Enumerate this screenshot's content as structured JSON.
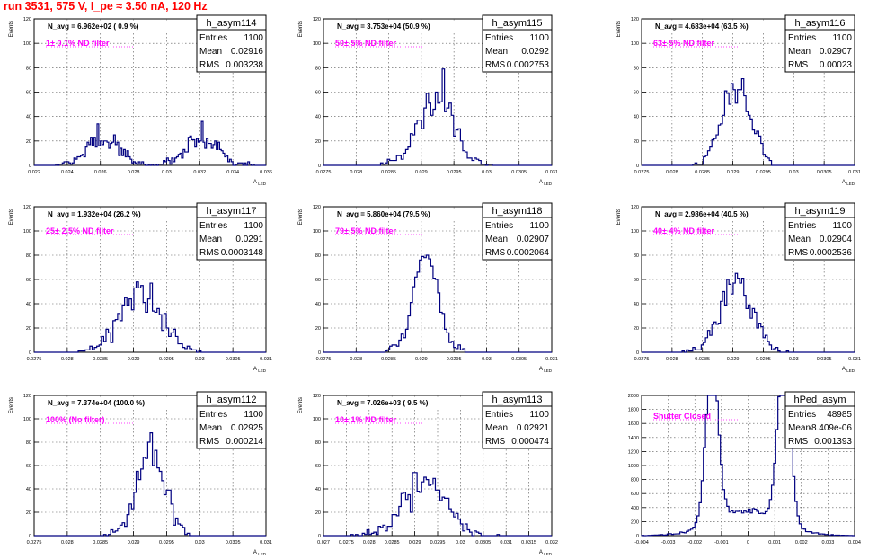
{
  "page_title": "run 3531,   575 V, I_pe ≈ 3.50 nA, 120 Hz",
  "colors": {
    "histogram": "#000080",
    "title": "#ff0000",
    "annotation": "#ff00ff"
  },
  "chart_data": [
    {
      "type": "histogram",
      "name": "h_asym114",
      "navg": "N_avg = 6.962e+02 ( 0.9 %)",
      "filter": "1± 0.1% ND filter",
      "stats": {
        "Entries": "1100",
        "Mean": "0.02916",
        "RMS": "0.003238"
      },
      "ylabel": "Events",
      "xlabel": "A_LED",
      "xlim": [
        0.022,
        0.036
      ],
      "ylim": [
        0,
        120
      ],
      "xticks": [
        "0.022",
        "0.024",
        "0.026",
        "0.028",
        "0.03",
        "0.032",
        "0.034",
        "0.036"
      ],
      "yticks": [
        "0",
        "20",
        "40",
        "60",
        "80",
        "100",
        "120"
      ],
      "dist": [
        {
          "mu": 0.0262,
          "sigma": 0.001,
          "n": 545
        },
        {
          "mu": 0.03215,
          "sigma": 0.001,
          "n": 555
        }
      ],
      "bins": 140,
      "seed": 11
    },
    {
      "type": "histogram",
      "name": "h_asym115",
      "navg": "N_avg = 3.753e+04 (50.9 %)",
      "filter": "50± 5% ND filter",
      "stats": {
        "Entries": "1100",
        "Mean": "0.0292",
        "RMS": "0.0002753"
      },
      "ylabel": "Events",
      "xlabel": "A_LED",
      "xlim": [
        0.0275,
        0.031
      ],
      "ylim": [
        0,
        120
      ],
      "xticks": [
        "0.0275",
        "0.028",
        "0.0285",
        "0.029",
        "0.0295",
        "0.03",
        "0.0305",
        "0.031"
      ],
      "yticks": [
        "0",
        "20",
        "40",
        "60",
        "80",
        "100",
        "120"
      ],
      "dist": [
        {
          "mu": 0.0292,
          "sigma": 0.000275,
          "n": 1100
        }
      ],
      "bins": 100,
      "seed": 23
    },
    {
      "type": "histogram",
      "name": "h_asym116",
      "navg": "N_avg = 4.683e+04 (63.5 %)",
      "filter": "63± 5% ND filter",
      "stats": {
        "Entries": "1100",
        "Mean": "0.02907",
        "RMS": "0.00023"
      },
      "ylabel": "Events",
      "xlabel": "A_LED",
      "xlim": [
        0.0275,
        0.031
      ],
      "ylim": [
        0,
        120
      ],
      "xticks": [
        "0.0275",
        "0.028",
        "0.0285",
        "0.029",
        "0.0295",
        "0.03",
        "0.0305",
        "0.031"
      ],
      "yticks": [
        "0",
        "20",
        "40",
        "60",
        "80",
        "100",
        "120"
      ],
      "dist": [
        {
          "mu": 0.02907,
          "sigma": 0.00023,
          "n": 1100
        }
      ],
      "bins": 100,
      "seed": 37
    },
    {
      "type": "histogram",
      "name": "h_asym117",
      "navg": "N_avg = 1.932e+04 (26.2 %)",
      "filter": "25± 2.5% ND filter",
      "stats": {
        "Entries": "1100",
        "Mean": "0.0291",
        "RMS": "0.0003148"
      },
      "ylabel": "Events",
      "xlabel": "A_LED",
      "xlim": [
        0.0275,
        0.031
      ],
      "ylim": [
        0,
        120
      ],
      "xticks": [
        "0.0275",
        "0.028",
        "0.0285",
        "0.029",
        "0.0295",
        "0.03",
        "0.0305",
        "0.031"
      ],
      "yticks": [
        "0",
        "20",
        "40",
        "60",
        "80",
        "100",
        "120"
      ],
      "dist": [
        {
          "mu": 0.0291,
          "sigma": 0.000315,
          "n": 1100
        }
      ],
      "bins": 100,
      "seed": 41
    },
    {
      "type": "histogram",
      "name": "h_asym118",
      "navg": "N_avg = 5.860e+04 (79.5 %)",
      "filter": "79± 5% ND filter",
      "stats": {
        "Entries": "1100",
        "Mean": "0.02907",
        "RMS": "0.0002064"
      },
      "ylabel": "Events",
      "xlabel": "A_LED",
      "xlim": [
        0.0275,
        0.031
      ],
      "ylim": [
        0,
        120
      ],
      "xticks": [
        "0.0275",
        "0.028",
        "0.0285",
        "0.029",
        "0.0295",
        "0.03",
        "0.0305",
        "0.031"
      ],
      "yticks": [
        "0",
        "20",
        "40",
        "60",
        "80",
        "100",
        "120"
      ],
      "dist": [
        {
          "mu": 0.02907,
          "sigma": 0.000206,
          "n": 1100
        }
      ],
      "bins": 100,
      "seed": 53
    },
    {
      "type": "histogram",
      "name": "h_asym119",
      "navg": "N_avg = 2.986e+04 (40.5 %)",
      "filter": "40± 4% ND filter",
      "stats": {
        "Entries": "1100",
        "Mean": "0.02904",
        "RMS": "0.0002536"
      },
      "ylabel": "Events",
      "xlabel": "A_LED",
      "xlim": [
        0.0275,
        0.031
      ],
      "ylim": [
        0,
        120
      ],
      "xticks": [
        "0.0275",
        "0.028",
        "0.0285",
        "0.029",
        "0.0295",
        "0.03",
        "0.0305",
        "0.031"
      ],
      "yticks": [
        "0",
        "20",
        "40",
        "60",
        "80",
        "100",
        "120"
      ],
      "dist": [
        {
          "mu": 0.02904,
          "sigma": 0.000254,
          "n": 1100
        }
      ],
      "bins": 100,
      "seed": 67
    },
    {
      "type": "histogram",
      "name": "h_asym112",
      "navg": "N_avg = 7.374e+04 (100.0 %)",
      "filter": "100% (No filter)",
      "stats": {
        "Entries": "1100",
        "Mean": "0.02925",
        "RMS": "0.000214"
      },
      "ylabel": "Events",
      "xlabel": "A_LED",
      "xlim": [
        0.0275,
        0.031
      ],
      "ylim": [
        0,
        120
      ],
      "xticks": [
        "0.0275",
        "0.028",
        "0.0285",
        "0.029",
        "0.0295",
        "0.03",
        "0.0305",
        "0.031"
      ],
      "yticks": [
        "0",
        "20",
        "40",
        "60",
        "80",
        "100",
        "120"
      ],
      "dist": [
        {
          "mu": 0.02925,
          "sigma": 0.000214,
          "n": 1100
        }
      ],
      "bins": 100,
      "seed": 71
    },
    {
      "type": "histogram",
      "name": "h_asym113",
      "navg": "N_avg = 7.026e+03 ( 9.5 %)",
      "filter": "10± 1% ND filter",
      "stats": {
        "Entries": "1100",
        "Mean": "0.02921",
        "RMS": "0.000474"
      },
      "ylabel": "Events",
      "xlabel": "A_LED",
      "xlim": [
        0.027,
        0.032
      ],
      "ylim": [
        0,
        120
      ],
      "xticks": [
        "0.027",
        "0.0275",
        "0.028",
        "0.0285",
        "0.029",
        "0.0295",
        "0.03",
        "0.0305",
        "0.031",
        "0.0315",
        "0.032"
      ],
      "yticks": [
        "0",
        "20",
        "40",
        "60",
        "80",
        "100",
        "120"
      ],
      "dist": [
        {
          "mu": 0.02921,
          "sigma": 0.000474,
          "n": 1100
        }
      ],
      "bins": 100,
      "seed": 83
    },
    {
      "type": "histogram",
      "name": "hPed_asym",
      "navg": "",
      "filter": "Shutter Closed",
      "stats": {
        "Entries": "48985",
        "Mean": "-8.409e-06",
        "RMS": "0.001393"
      },
      "ylabel": "",
      "xlabel": "",
      "xlim": [
        -0.004,
        0.004
      ],
      "ylim": [
        0,
        2000
      ],
      "xticks": [
        "-0.004",
        "-0.003",
        "-0.002",
        "-0.001",
        "0",
        "0.001",
        "0.002",
        "0.003",
        "0.004"
      ],
      "yticks": [
        "0",
        "200",
        "400",
        "600",
        "800",
        "1000",
        "1200",
        "1400",
        "1600",
        "1800",
        "2000"
      ],
      "dist": [
        {
          "mu": -0.00135,
          "sigma": 0.00023,
          "n": 17500
        },
        {
          "mu": 0.00135,
          "sigma": 0.00023,
          "n": 18000
        },
        {
          "mu": 0.0,
          "sigma": 0.0012,
          "n": 13485
        }
      ],
      "bins": 100,
      "seed": 97
    }
  ]
}
